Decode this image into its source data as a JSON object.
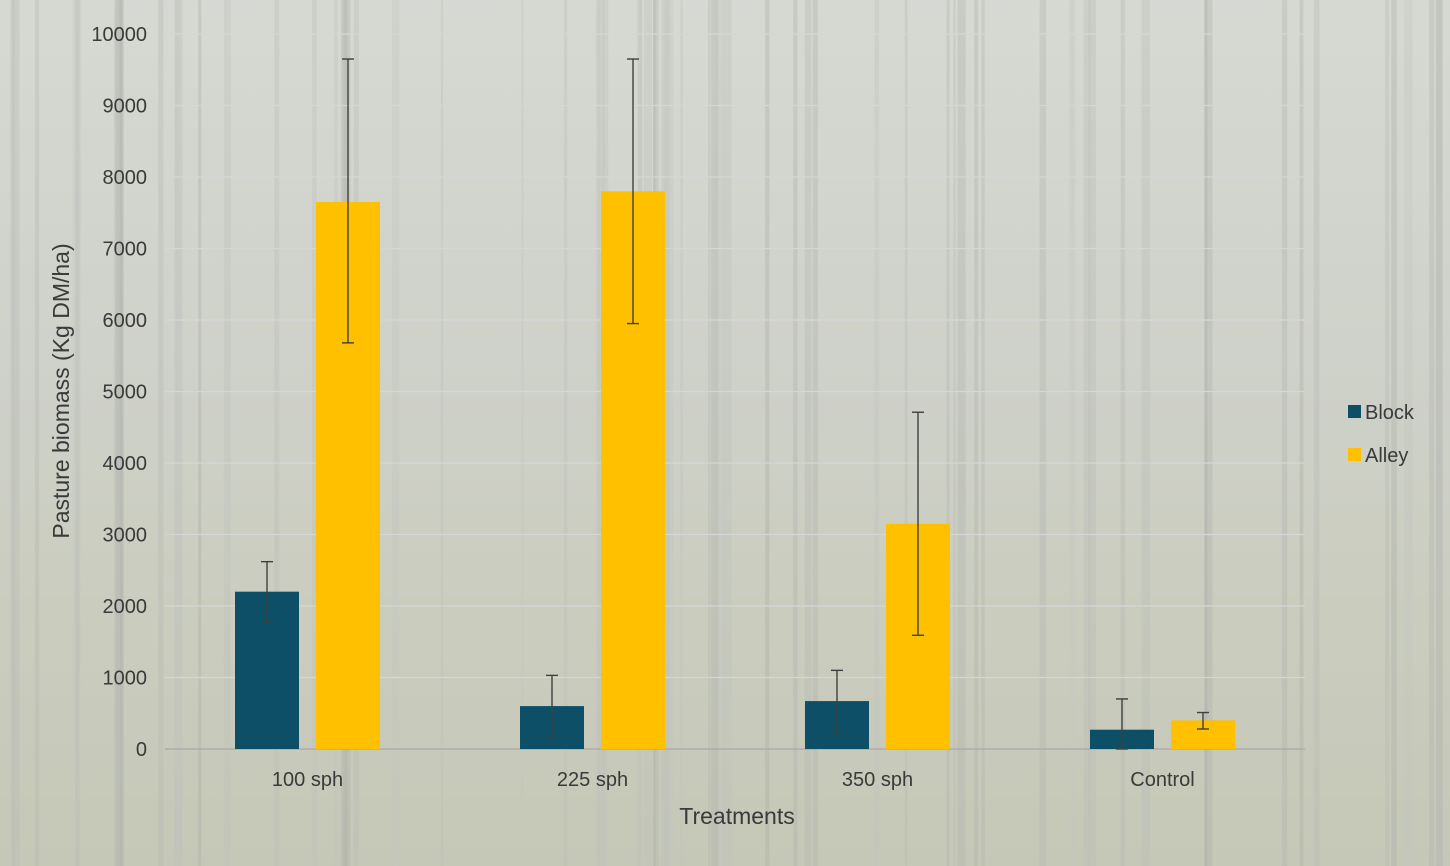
{
  "chart_data": {
    "type": "bar",
    "title": "",
    "xlabel": "Treatments",
    "ylabel": "Pasture biomass (Kg DM/ha)",
    "ylim": [
      0,
      10000
    ],
    "yticks": [
      0,
      1000,
      2000,
      3000,
      4000,
      5000,
      6000,
      7000,
      8000,
      9000,
      10000
    ],
    "categories": [
      "100 sph",
      "225 sph",
      "350 sph",
      "Control"
    ],
    "series": [
      {
        "name": "Block",
        "color": "#0d4f66",
        "values": [
          2200,
          600,
          670,
          270
        ],
        "error_low": [
          1760,
          160,
          240,
          0
        ],
        "error_high": [
          2620,
          1030,
          1100,
          700
        ]
      },
      {
        "name": "Alley",
        "color": "#ffc000",
        "values": [
          7650,
          7800,
          3150,
          400
        ],
        "error_low": [
          5680,
          5950,
          1590,
          280
        ],
        "error_high": [
          9650,
          9650,
          4710,
          510
        ]
      }
    ],
    "grid": true,
    "legend_position": "right"
  }
}
